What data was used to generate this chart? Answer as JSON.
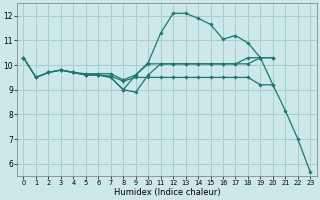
{
  "background_color": "#cde8e8",
  "grid_color": "#aacccc",
  "line_color": "#1a7a6e",
  "xlabel": "Humidex (Indice chaleur)",
  "xlim": [
    -0.5,
    23.5
  ],
  "ylim": [
    5.5,
    12.5
  ],
  "yticks": [
    6,
    7,
    8,
    9,
    10,
    11,
    12
  ],
  "xticks": [
    0,
    1,
    2,
    3,
    4,
    5,
    6,
    7,
    8,
    9,
    10,
    11,
    12,
    13,
    14,
    15,
    16,
    17,
    18,
    19,
    20,
    21,
    22,
    23
  ],
  "lines": [
    {
      "x": [
        0,
        1,
        2,
        3,
        4,
        5,
        6,
        7,
        8,
        9,
        10,
        11,
        12,
        13,
        14,
        15,
        16,
        17,
        18,
        19,
        20,
        21,
        22,
        23
      ],
      "y": [
        10.3,
        9.5,
        9.7,
        9.8,
        9.7,
        9.6,
        9.6,
        9.5,
        9.0,
        9.6,
        10.1,
        11.3,
        12.1,
        12.1,
        11.9,
        11.65,
        11.05,
        11.2,
        10.9,
        10.3,
        9.2,
        8.15,
        7.0,
        5.65
      ]
    },
    {
      "x": [
        0,
        1,
        2,
        3,
        4,
        5,
        6,
        7,
        8,
        9,
        10,
        11,
        12,
        13,
        14,
        15,
        16,
        17,
        18,
        19,
        20
      ],
      "y": [
        10.3,
        9.5,
        9.7,
        9.8,
        9.7,
        9.65,
        9.65,
        9.65,
        9.4,
        9.6,
        10.05,
        10.05,
        10.05,
        10.05,
        10.05,
        10.05,
        10.05,
        10.05,
        10.05,
        10.3,
        10.3
      ]
    },
    {
      "x": [
        0,
        1,
        2,
        3,
        4,
        5,
        6,
        7,
        8,
        9,
        10,
        11,
        12,
        13,
        14,
        15,
        16,
        17,
        18,
        19,
        20
      ],
      "y": [
        10.3,
        9.5,
        9.7,
        9.8,
        9.7,
        9.6,
        9.6,
        9.55,
        9.35,
        9.5,
        9.5,
        9.5,
        9.5,
        9.5,
        9.5,
        9.5,
        9.5,
        9.5,
        9.5,
        9.2,
        9.2
      ]
    },
    {
      "x": [
        3,
        4,
        5,
        6,
        7,
        8,
        9,
        10,
        11,
        12,
        13,
        14,
        15,
        16,
        17,
        18,
        19,
        20
      ],
      "y": [
        9.8,
        9.7,
        9.6,
        9.6,
        9.5,
        9.0,
        8.9,
        9.6,
        10.05,
        10.05,
        10.05,
        10.05,
        10.05,
        10.05,
        10.05,
        10.3,
        10.3,
        10.3
      ]
    }
  ]
}
